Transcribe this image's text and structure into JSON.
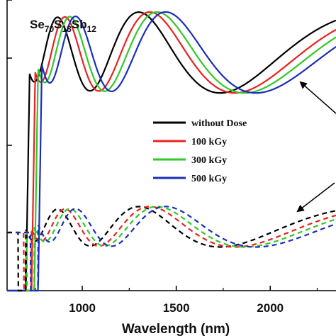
{
  "chart_data": {
    "type": "line",
    "title": {
      "parts": [
        {
          "text": "Se",
          "sub": false
        },
        {
          "text": "70",
          "sub": true
        },
        {
          "text": "S",
          "sub": false
        },
        {
          "text": "18",
          "sub": true
        },
        {
          "text": "Sb",
          "sub": false
        },
        {
          "text": "12",
          "sub": true
        }
      ]
    },
    "xlabel": "Wavelength (nm)",
    "ylabel": "",
    "xlim": [
      600,
      2350
    ],
    "ylim": [
      0,
      1.0
    ],
    "x_ticks": [
      1000,
      1500,
      2000
    ],
    "x_tick_labels": [
      "1000",
      "1500",
      "2000"
    ],
    "y_ticks": [
      0.2,
      0.5,
      0.8,
      1.0
    ],
    "grid": false,
    "legend": {
      "placement": "center-right",
      "entries": [
        {
          "label": "without Dose",
          "color": "#000000"
        },
        {
          "label": "100 kGy",
          "color": "#e8231f"
        },
        {
          "label": "300 kGy",
          "color": "#31c928"
        },
        {
          "label": "500 kGy",
          "color": "#1a2fb8"
        }
      ]
    },
    "series": [
      {
        "name": "without Dose",
        "color": "#000000",
        "cutoff": 700,
        "shift": 1.0
      },
      {
        "name": "100 kGy",
        "color": "#e8231f",
        "cutoff": 730,
        "shift": 1.045
      },
      {
        "name": "300 kGy",
        "color": "#31c928",
        "cutoff": 745,
        "shift": 1.075
      },
      {
        "name": "500 kGy",
        "color": "#1a2fb8",
        "cutoff": 765,
        "shift": 1.11
      }
    ],
    "curve_groups": [
      {
        "line_style": "solid",
        "baseline": 0.82,
        "amplitude": 0.14
      },
      {
        "line_style": "dashed",
        "baseline": 0.22,
        "amplitude": 0.07
      }
    ],
    "annotation_arrows": 2
  }
}
